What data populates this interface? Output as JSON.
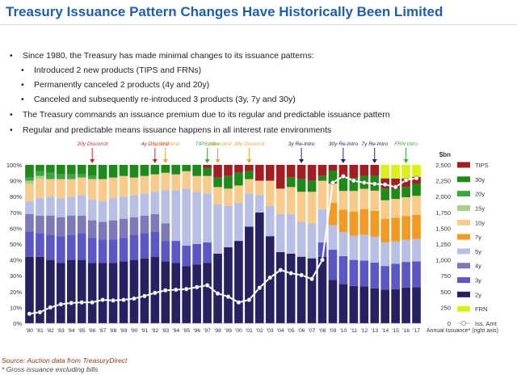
{
  "page": {
    "title": "Treasury Issuance Pattern Changes Have Historically Been Limited",
    "bullets": [
      {
        "level": 1,
        "text": "Since 1980, the Treasury has made minimal changes to its issuance patterns:"
      },
      {
        "level": 2,
        "text": "Introduced 2 new products (TIPS and FRNs)"
      },
      {
        "level": 2,
        "text": "Permanently canceled 2 products (4y and 20y)"
      },
      {
        "level": 2,
        "text": "Canceled and subsequently re-introduced 3 products (3y, 7y and 30y)"
      },
      {
        "level": 1,
        "text": "The Treasury commands an issuance premium due to its regular and predictable issuance pattern"
      },
      {
        "level": 1,
        "text": "Regular and predictable means issuance happens in all interest rate environments"
      }
    ],
    "source": "Source: Auction data from TreasuryDirect",
    "footnote": "* Gross issuance excluding bills"
  },
  "chart_data": {
    "type": "bar",
    "stacked": true,
    "categories": [
      "'80",
      "'81",
      "'82",
      "'83",
      "'84",
      "'85",
      "'86",
      "'87",
      "'88",
      "'89",
      "'90",
      "'91",
      "'92",
      "'93",
      "'94",
      "'95",
      "'96",
      "'97",
      "'98",
      "'99",
      "'00",
      "'01",
      "'02",
      "'03",
      "'04",
      "'05",
      "'06",
      "'07",
      "'08",
      "'09",
      "'10",
      "'11",
      "'12",
      "'13",
      "'14",
      "'15",
      "'16",
      "'17"
    ],
    "y_left_ticks": [
      "0%",
      "10%",
      "20%",
      "30%",
      "40%",
      "50%",
      "60%",
      "70%",
      "80%",
      "90%",
      "100%"
    ],
    "y_right_label": "$bn",
    "y_right_ticks": [
      "0",
      "250",
      "500",
      "750",
      "1,000",
      "1,250",
      "1,500",
      "1,750",
      "2,000",
      "2,250",
      "2,500"
    ],
    "y_right_range": [
      0,
      2500
    ],
    "x_right_note": "Annual Issuance* (right axis)",
    "series": [
      {
        "name": "2y",
        "color": "#262262",
        "values": [
          42,
          42,
          40,
          38,
          40,
          40,
          38,
          38,
          38,
          39,
          40,
          41,
          42,
          39,
          38,
          36,
          37,
          38,
          44,
          48,
          52,
          61,
          70,
          55,
          45,
          44,
          42,
          41,
          42,
          23,
          21,
          20,
          20,
          19,
          20,
          20,
          21,
          21
        ]
      },
      {
        "name": "3y",
        "color": "#5b57c4",
        "values": [
          16,
          15,
          16,
          17,
          16,
          17,
          16,
          15,
          15,
          15,
          16,
          16,
          16,
          13,
          14,
          13,
          13,
          13,
          0,
          0,
          0,
          0,
          0,
          0,
          0,
          0,
          0,
          0,
          9,
          16,
          15,
          14,
          14,
          14,
          14,
          15,
          15,
          15
        ]
      },
      {
        "name": "4y",
        "color": "#7e7ab8",
        "values": [
          11,
          11,
          12,
          12,
          12,
          11,
          11,
          11,
          12,
          12,
          11,
          11,
          11,
          11,
          0,
          0,
          0,
          0,
          0,
          0,
          0,
          0,
          0,
          0,
          0,
          0,
          0,
          0,
          0,
          0,
          0,
          0,
          0,
          0,
          0,
          0,
          0,
          0
        ]
      },
      {
        "name": "5y",
        "color": "#b7c0e4",
        "values": [
          8,
          11,
          12,
          12,
          12,
          13,
          13,
          13,
          14,
          14,
          14,
          14,
          14,
          21,
          32,
          36,
          33,
          31,
          31,
          26,
          24,
          21,
          11,
          19,
          24,
          25,
          22,
          22,
          21,
          13,
          13,
          13,
          14,
          14,
          14,
          13,
          13,
          13
        ]
      },
      {
        "name": "7y",
        "color": "#f29a24",
        "values": [
          0,
          0,
          0,
          0,
          0,
          0,
          0,
          0,
          0,
          0,
          0,
          0,
          0,
          0,
          0,
          0,
          0,
          0,
          0,
          0,
          0,
          0,
          0,
          0,
          0,
          0,
          0,
          0,
          0,
          12,
          12,
          13,
          14,
          14,
          14,
          14,
          14,
          14
        ]
      },
      {
        "name": "10y",
        "color": "#f8cb8a",
        "values": [
          11,
          12,
          11,
          12,
          11,
          11,
          13,
          14,
          13,
          13,
          11,
          11,
          11,
          11,
          10,
          11,
          10,
          11,
          11,
          11,
          11,
          9,
          9,
          16,
          16,
          17,
          19,
          20,
          18,
          10,
          10,
          11,
          11,
          11,
          11,
          11,
          11,
          11
        ]
      },
      {
        "name": "15y",
        "color": "#a9d18e",
        "values": [
          2,
          2,
          0,
          0,
          0,
          0,
          0,
          0,
          0,
          0,
          0,
          0,
          0,
          0,
          0,
          0,
          0,
          0,
          0,
          0,
          0,
          0,
          0,
          0,
          0,
          0,
          0,
          0,
          0,
          0,
          0,
          0,
          0,
          0,
          0,
          0,
          0,
          0
        ]
      },
      {
        "name": "20y",
        "color": "#3aa842",
        "values": [
          2,
          3,
          4,
          3,
          3,
          2,
          2,
          0,
          0,
          0,
          0,
          0,
          0,
          0,
          0,
          0,
          0,
          0,
          0,
          0,
          0,
          0,
          0,
          0,
          0,
          0,
          0,
          0,
          0,
          0,
          0,
          0,
          0,
          0,
          0,
          0,
          0,
          0
        ]
      },
      {
        "name": "30y",
        "color": "#1e8a1a",
        "values": [
          8,
          4,
          5,
          6,
          6,
          6,
          7,
          9,
          8,
          7,
          8,
          7,
          6,
          5,
          6,
          4,
          7,
          5,
          6,
          8,
          8,
          5,
          0,
          0,
          0,
          6,
          8,
          7,
          3,
          7,
          7,
          7,
          7,
          8,
          7,
          6,
          6,
          7
        ]
      },
      {
        "name": "TIPS",
        "color": "#a31e22",
        "values": [
          0,
          0,
          0,
          0,
          0,
          0,
          0,
          0,
          0,
          0,
          0,
          0,
          0,
          0,
          0,
          0,
          0,
          2,
          8,
          7,
          5,
          4,
          10,
          10,
          15,
          8,
          9,
          10,
          7,
          3,
          7,
          7,
          6,
          6,
          6,
          6,
          5,
          4
        ]
      },
      {
        "name": "FRN",
        "color": "#d9f019",
        "values": [
          0,
          0,
          0,
          0,
          0,
          0,
          0,
          0,
          0,
          0,
          0,
          0,
          0,
          0,
          0,
          0,
          0,
          0,
          0,
          0,
          0,
          0,
          0,
          0,
          0,
          0,
          0,
          0,
          0,
          0,
          0,
          0,
          0,
          0,
          8,
          8,
          8,
          7
        ]
      }
    ],
    "line_series": {
      "name": "Iss. Amt",
      "axis": "right",
      "values": [
        150,
        175,
        250,
        300,
        320,
        330,
        330,
        370,
        360,
        370,
        390,
        430,
        480,
        520,
        530,
        540,
        570,
        600,
        470,
        420,
        330,
        370,
        560,
        720,
        840,
        790,
        760,
        700,
        1000,
        2220,
        2320,
        2250,
        2220,
        2200,
        2190,
        2150,
        2260,
        2290
      ]
    },
    "legend_order": [
      "TIPS",
      "30y",
      "20y",
      "15y",
      "10y",
      "7y",
      "5y",
      "4y",
      "3y",
      "2y",
      "FRN",
      "Iss. Amt"
    ],
    "annotations": [
      {
        "text": "20y Discon'd",
        "index": 6,
        "color": "#c0262d"
      },
      {
        "text": "4y Discon'd",
        "index": 12,
        "color": "#c0262d"
      },
      {
        "text": "7y Discon'd",
        "index": 13,
        "color": "#e8a33a"
      },
      {
        "text": "TIPS Intro",
        "index": 17,
        "color": "#3aa842"
      },
      {
        "text": "3y Discon'd",
        "index": 18,
        "color": "#e8a33a"
      },
      {
        "text": "30y Discon'd",
        "index": 21,
        "color": "#e8a33a"
      },
      {
        "text": "3y Re-Intro",
        "index": 26,
        "color": "#262262"
      },
      {
        "text": "30y Re-Intro",
        "index": 30,
        "color": "#262262"
      },
      {
        "text": "7y Re-Intro",
        "index": 33,
        "color": "#262262"
      },
      {
        "text": "FRN Intro",
        "index": 36,
        "color": "#3aa842"
      }
    ],
    "grid": false,
    "legend_position": "right"
  }
}
